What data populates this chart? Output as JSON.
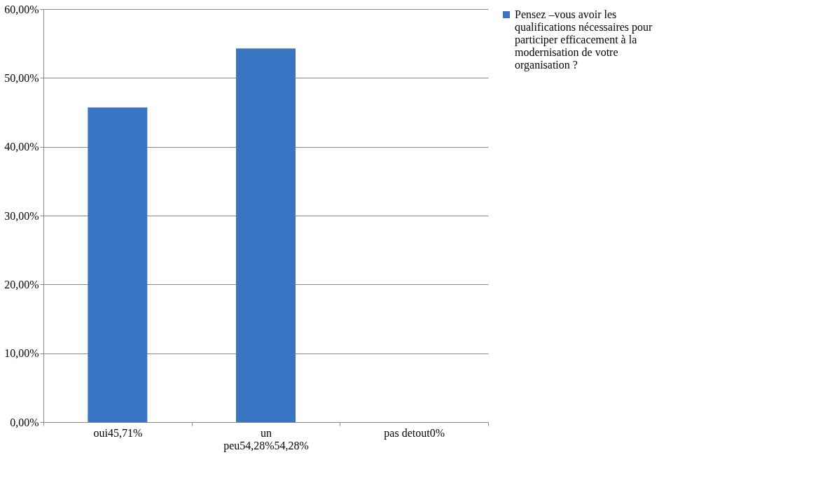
{
  "chart_data": {
    "type": "bar",
    "categories": [
      "oui45,71%",
      "un peu54,28%54,28%",
      "pas detout0%"
    ],
    "series": [
      {
        "name": "Pensez –vous avoir les qualifications nécessaires  pour participer efficacement à la modernisation de votre organisation ?",
        "color": "#3a75c4",
        "values": [
          45.71,
          54.28,
          0
        ]
      }
    ],
    "ylim": [
      0,
      60
    ],
    "yticks": [
      {
        "value": 0,
        "label": "0,00%"
      },
      {
        "value": 10,
        "label": "10,00%"
      },
      {
        "value": 20,
        "label": "20,00%"
      },
      {
        "value": 30,
        "label": "30,00%"
      },
      {
        "value": 40,
        "label": "40,00%"
      },
      {
        "value": 50,
        "label": "50,00%"
      },
      {
        "value": 60,
        "label": "60,00%"
      }
    ],
    "grid": "y",
    "legend": "right"
  }
}
